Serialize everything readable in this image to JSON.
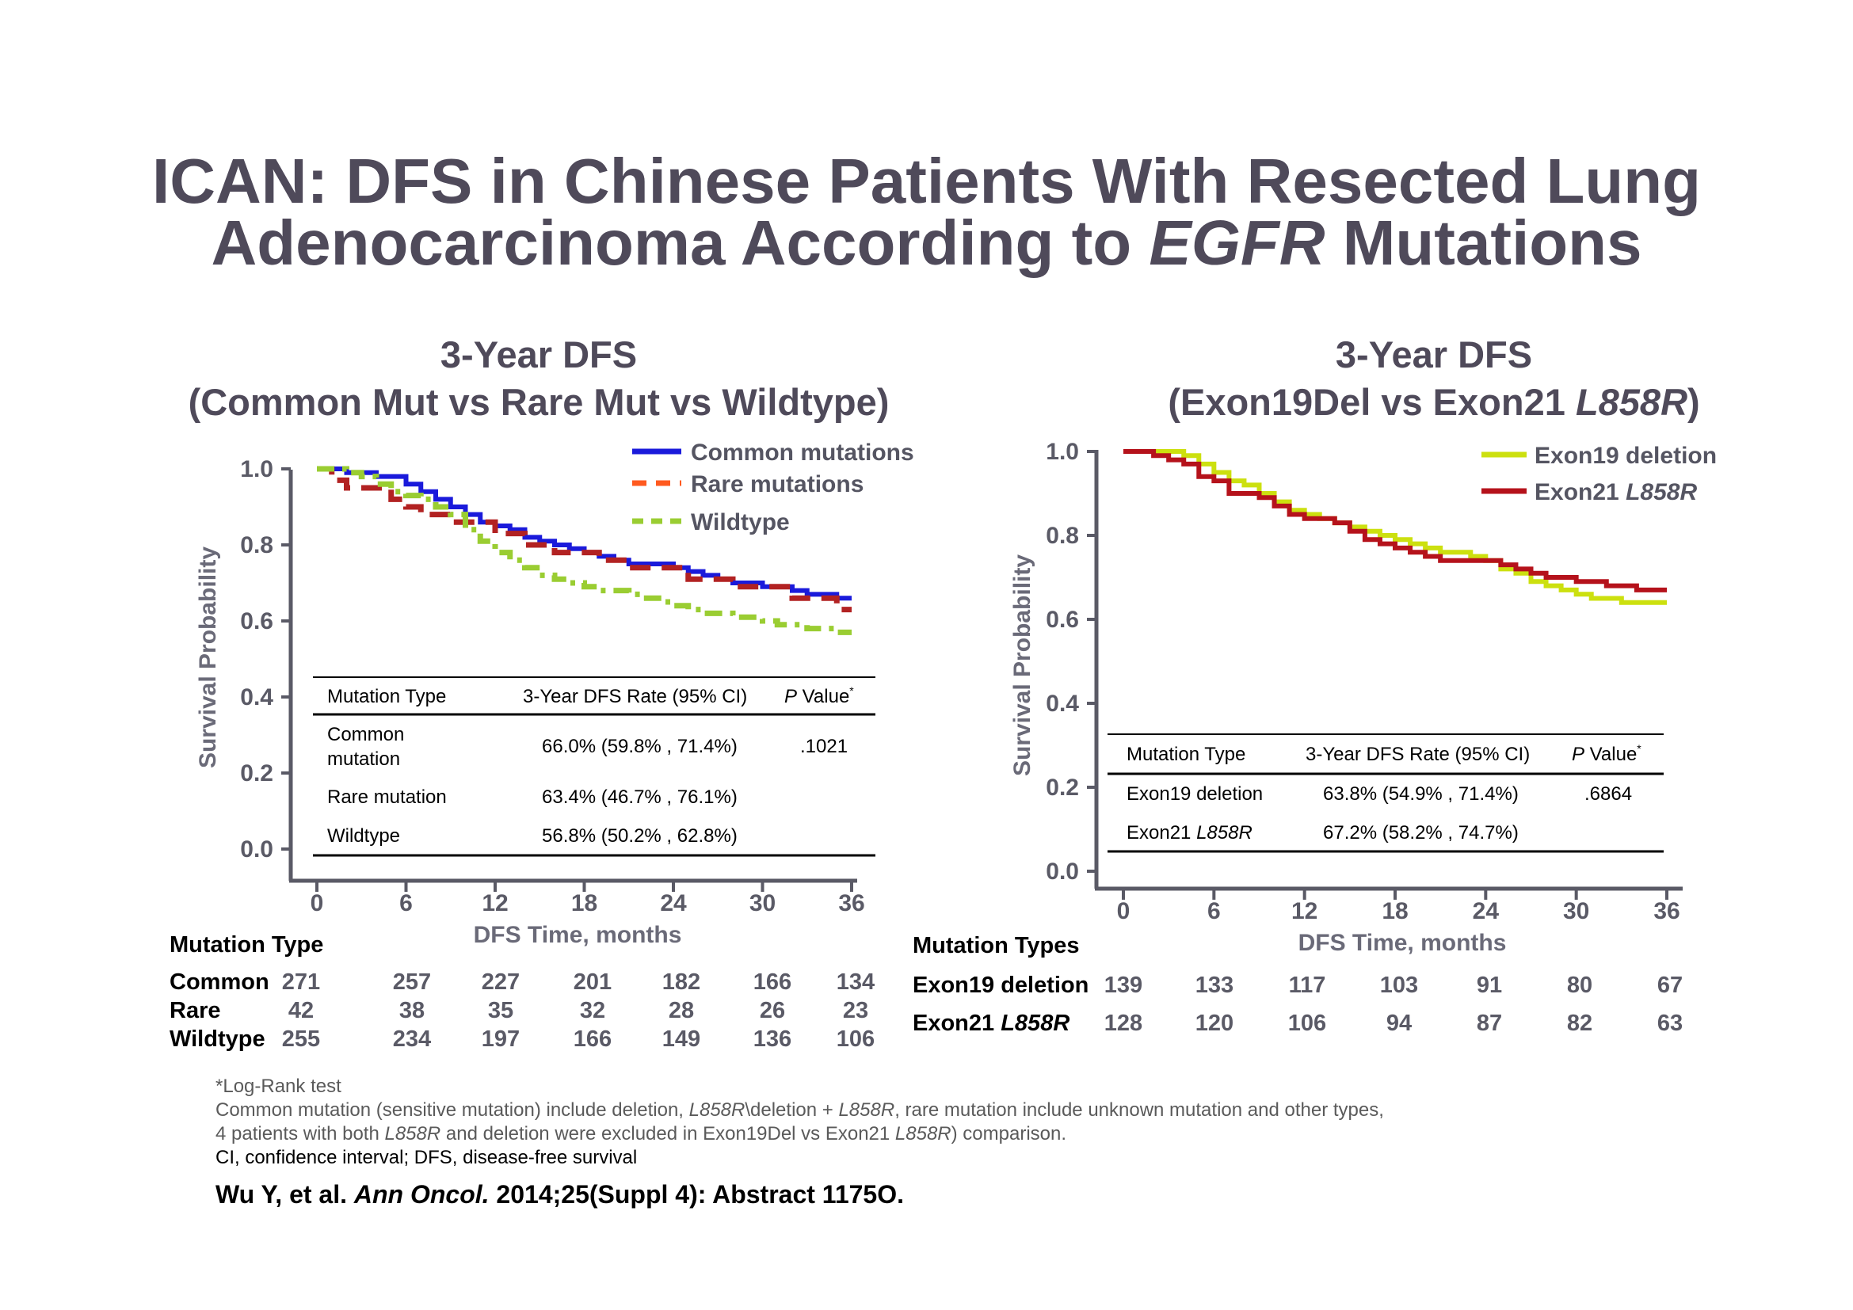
{
  "title": {
    "line1": "ICAN: DFS in Chinese Patients With Resected Lung",
    "line2_before": "Adenocarcinoma According to ",
    "line2_italic": "EGFR",
    "line2_after": " Mutations"
  },
  "left_panel": {
    "heading1": "3-Year DFS",
    "heading2": "(Common Mut vs Rare Mut vs Wildtype)",
    "table": {
      "headers": [
        "Mutation Type",
        "3-Year DFS Rate (95% CI)",
        "P",
        " Value",
        "*"
      ],
      "rows": [
        {
          "name_line1": "Common",
          "name_line2": "mutation",
          "rate": "66.0% (59.8% , 71.4%)",
          "p": ".1021"
        },
        {
          "name_line1": "Rare mutation",
          "name_line2": "",
          "rate": "63.4% (46.7% , 76.1%)",
          "p": ""
        },
        {
          "name_line1": "Wildtype",
          "name_line2": "",
          "rate": "56.8% (50.2% , 62.8%)",
          "p": ""
        }
      ]
    },
    "risk_header": "Mutation Type",
    "risk_rows": [
      {
        "label": "Common",
        "values": [
          "271",
          "257",
          "227",
          "201",
          "182",
          "166",
          "134"
        ]
      },
      {
        "label": "Rare",
        "values": [
          "42",
          "38",
          "35",
          "32",
          "28",
          "26",
          "23"
        ]
      },
      {
        "label": "Wildtype",
        "values": [
          "255",
          "234",
          "197",
          "166",
          "149",
          "136",
          "106"
        ]
      }
    ]
  },
  "right_panel": {
    "heading1": "3-Year DFS",
    "heading2_before": "(Exon19Del vs Exon21 ",
    "heading2_italic": "L858R",
    "heading2_after": ")",
    "table": {
      "headers": [
        "Mutation Type",
        "3-Year DFS Rate (95% CI)",
        "P",
        " Value",
        "*"
      ],
      "rows": [
        {
          "name": "Exon19 deletion",
          "name_italic": "",
          "rate": "63.8% (54.9% , 71.4%)",
          "p": ".6864"
        },
        {
          "name": "Exon21 ",
          "name_italic": "L858R",
          "rate": "67.2% (58.2% , 74.7%)",
          "p": ""
        }
      ]
    },
    "risk_header": "Mutation Types",
    "risk_rows": [
      {
        "label": "Exon19 deletion",
        "label_italic": "",
        "values": [
          "139",
          "133",
          "117",
          "103",
          "91",
          "80",
          "67"
        ]
      },
      {
        "label": "Exon21 ",
        "label_italic": "L858R",
        "values": [
          "128",
          "120",
          "106",
          "94",
          "87",
          "82",
          "63"
        ]
      }
    ]
  },
  "footnotes": {
    "line1": "*Log-Rank test",
    "line2_parts": [
      "Common mutation (sensitive mutation) include deletion, ",
      "L858R",
      "\\deletion + ",
      "L858R",
      ", rare mutation include unknown mutation and  other types,"
    ],
    "line3_parts": [
      "4 patients with both ",
      "L858R",
      " and deletion were excluded in Exon19Del vs Exon21 ",
      "L858R",
      ") comparison."
    ],
    "line4": "CI, confidence interval; DFS, disease-free survival"
  },
  "citation": {
    "before": "Wu Y, et al. ",
    "italic": "Ann Oncol.",
    "after": " 2014;25(Suppl 4): Abstract 1175O."
  },
  "chart_data": [
    {
      "type": "line",
      "title": "3-Year DFS (Common Mut vs Rare Mut vs Wildtype)",
      "xlabel": "DFS Time, months",
      "ylabel": "Survival Probability",
      "xlim": [
        0,
        36
      ],
      "ylim": [
        0,
        1
      ],
      "xticks": [
        "0",
        "6",
        "12",
        "18",
        "24",
        "30",
        "36"
      ],
      "yticks": [
        "0.0",
        "0.2",
        "0.4",
        "0.6",
        "0.8",
        "1.0"
      ],
      "legend_position": "top-right",
      "series": [
        {
          "name": "Common mutations",
          "color": "#1a1adb",
          "style": "solid",
          "x": [
            0,
            1,
            2,
            3,
            4,
            5,
            6,
            7,
            8,
            9,
            10,
            11,
            12,
            13,
            14,
            15,
            16,
            17,
            18,
            19,
            20,
            21,
            22,
            23,
            24,
            25,
            26,
            27,
            28,
            29,
            30,
            31,
            32,
            33,
            34,
            35,
            36
          ],
          "y": [
            1.0,
            1.0,
            0.99,
            0.99,
            0.98,
            0.98,
            0.96,
            0.94,
            0.92,
            0.9,
            0.88,
            0.86,
            0.85,
            0.84,
            0.82,
            0.81,
            0.8,
            0.79,
            0.78,
            0.77,
            0.76,
            0.75,
            0.75,
            0.75,
            0.74,
            0.73,
            0.72,
            0.71,
            0.7,
            0.7,
            0.69,
            0.69,
            0.68,
            0.67,
            0.67,
            0.66,
            0.66
          ]
        },
        {
          "name": "Rare mutations",
          "color": "#b22222",
          "style": "dashed",
          "x": [
            0,
            1,
            2,
            3,
            4,
            5,
            6,
            7,
            8,
            9,
            10,
            11,
            12,
            13,
            14,
            15,
            16,
            17,
            18,
            19,
            20,
            21,
            22,
            23,
            24,
            25,
            26,
            27,
            28,
            29,
            30,
            31,
            32,
            33,
            34,
            35,
            36
          ],
          "y": [
            1.0,
            0.97,
            0.95,
            0.95,
            0.95,
            0.92,
            0.9,
            0.88,
            0.88,
            0.86,
            0.86,
            0.86,
            0.83,
            0.83,
            0.8,
            0.8,
            0.78,
            0.78,
            0.78,
            0.76,
            0.76,
            0.74,
            0.74,
            0.74,
            0.74,
            0.71,
            0.71,
            0.71,
            0.69,
            0.69,
            0.69,
            0.69,
            0.66,
            0.66,
            0.66,
            0.63,
            0.63
          ]
        },
        {
          "name": "Wildtype",
          "color": "#9acd32",
          "style": "dashdot",
          "x": [
            0,
            1,
            2,
            3,
            4,
            5,
            6,
            7,
            8,
            9,
            10,
            11,
            12,
            13,
            14,
            15,
            16,
            17,
            18,
            19,
            20,
            21,
            22,
            23,
            24,
            25,
            26,
            27,
            28,
            29,
            30,
            31,
            32,
            33,
            34,
            35,
            36
          ],
          "y": [
            1.0,
            1.0,
            0.99,
            0.98,
            0.96,
            0.94,
            0.93,
            0.92,
            0.9,
            0.88,
            0.84,
            0.81,
            0.78,
            0.76,
            0.74,
            0.72,
            0.71,
            0.7,
            0.69,
            0.68,
            0.68,
            0.67,
            0.66,
            0.65,
            0.64,
            0.63,
            0.62,
            0.62,
            0.61,
            0.61,
            0.6,
            0.59,
            0.59,
            0.58,
            0.58,
            0.57,
            0.57
          ]
        }
      ]
    },
    {
      "type": "line",
      "title": "3-Year DFS (Exon19Del vs Exon21 L858R)",
      "xlabel": "DFS Time, months",
      "ylabel": "Survival Probability",
      "xlim": [
        0,
        36
      ],
      "ylim": [
        0,
        1
      ],
      "xticks": [
        "0",
        "6",
        "12",
        "18",
        "24",
        "30",
        "36"
      ],
      "yticks": [
        "0.0",
        "0.2",
        "0.4",
        "0.6",
        "0.8",
        "1.0"
      ],
      "legend_position": "top-right",
      "series": [
        {
          "name": "Exon19 deletion",
          "color": "#cce00f",
          "style": "solid",
          "x": [
            0,
            1,
            2,
            3,
            4,
            5,
            6,
            7,
            8,
            9,
            10,
            11,
            12,
            13,
            14,
            15,
            16,
            17,
            18,
            19,
            20,
            21,
            22,
            23,
            24,
            25,
            26,
            27,
            28,
            29,
            30,
            31,
            32,
            33,
            34,
            35,
            36
          ],
          "y": [
            1.0,
            1.0,
            1.0,
            1.0,
            0.99,
            0.97,
            0.95,
            0.93,
            0.92,
            0.9,
            0.88,
            0.86,
            0.85,
            0.84,
            0.83,
            0.82,
            0.81,
            0.8,
            0.79,
            0.78,
            0.77,
            0.76,
            0.76,
            0.75,
            0.74,
            0.72,
            0.71,
            0.69,
            0.68,
            0.67,
            0.66,
            0.65,
            0.65,
            0.64,
            0.64,
            0.64,
            0.64
          ]
        },
        {
          "name": "Exon21 L858R",
          "color": "#b5121b",
          "style": "solid",
          "x": [
            0,
            1,
            2,
            3,
            4,
            5,
            6,
            7,
            8,
            9,
            10,
            11,
            12,
            13,
            14,
            15,
            16,
            17,
            18,
            19,
            20,
            21,
            22,
            23,
            24,
            25,
            26,
            27,
            28,
            29,
            30,
            31,
            32,
            33,
            34,
            35,
            36
          ],
          "y": [
            1.0,
            1.0,
            0.99,
            0.98,
            0.97,
            0.94,
            0.93,
            0.9,
            0.9,
            0.89,
            0.87,
            0.85,
            0.84,
            0.84,
            0.83,
            0.81,
            0.79,
            0.78,
            0.77,
            0.76,
            0.75,
            0.74,
            0.74,
            0.74,
            0.74,
            0.73,
            0.72,
            0.71,
            0.7,
            0.7,
            0.69,
            0.69,
            0.68,
            0.68,
            0.67,
            0.67,
            0.67
          ]
        }
      ]
    }
  ]
}
